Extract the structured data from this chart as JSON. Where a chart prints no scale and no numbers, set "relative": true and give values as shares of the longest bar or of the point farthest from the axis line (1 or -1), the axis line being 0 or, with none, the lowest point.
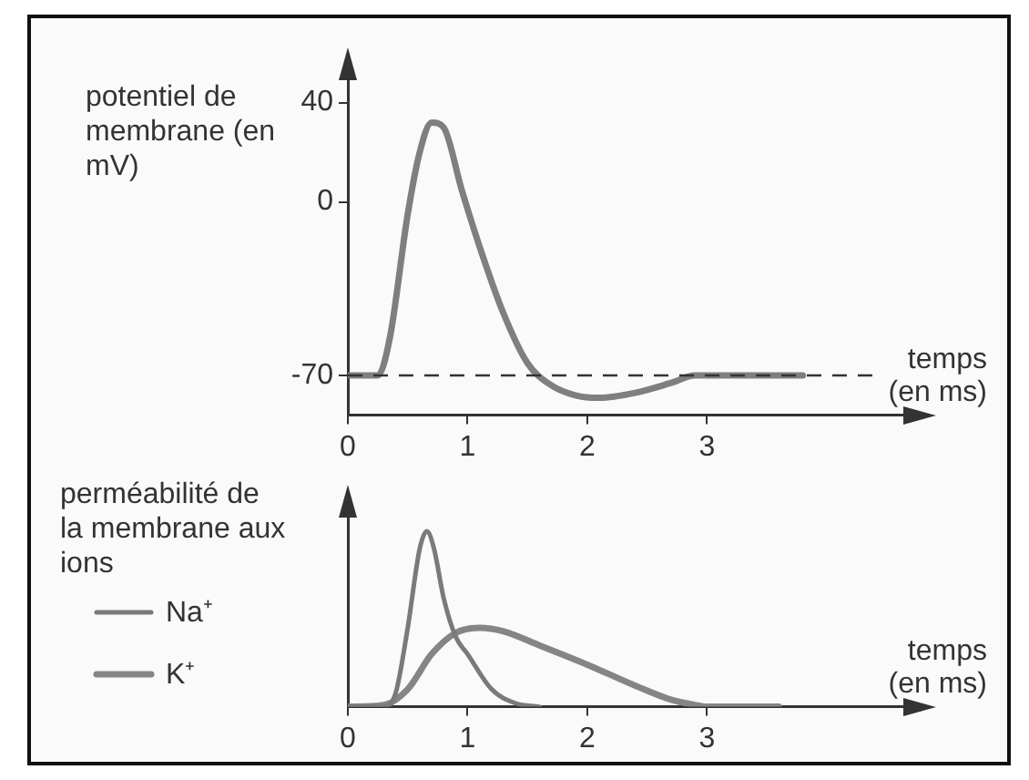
{
  "chart_data": [
    {
      "type": "line",
      "ylabel": "potentiel de membrane (en mV)",
      "xlabel": "temps (en ms)",
      "xlim": [
        0,
        4.7
      ],
      "xticks": [
        0,
        1,
        2,
        3
      ],
      "ylim": [
        -86,
        52
      ],
      "yticks": [
        -70,
        0,
        40
      ],
      "x": [
        0,
        0.25,
        0.35,
        0.5,
        0.6,
        0.7,
        0.8,
        0.95,
        1.1,
        1.3,
        1.5,
        1.7,
        1.9,
        2.1,
        2.4,
        2.7,
        2.9,
        3.8
      ],
      "series": [
        {
          "color": "#7f7f7f",
          "values": [
            -70,
            -70,
            -55,
            -5,
            20,
            32,
            30,
            5,
            -18,
            -45,
            -65,
            -74,
            -78,
            -79,
            -77,
            -73,
            -70,
            -70
          ]
        }
      ],
      "ref_lines": [
        {
          "axis": "y",
          "value": -70,
          "line_style": "dashed",
          "color": "#333333"
        }
      ],
      "grid": false,
      "marker": "none"
    },
    {
      "type": "line",
      "ylabel": "perméabilité de la membrane aux ions",
      "xlabel": "temps (en ms)",
      "xlim": [
        0,
        4.7
      ],
      "xticks": [
        0,
        1,
        2,
        3
      ],
      "relative": true,
      "tick_labels": "x",
      "legend": "left",
      "grid": false,
      "marker": "none",
      "series": [
        {
          "name": "Na⁺",
          "color": "#7a7a7a",
          "x": [
            0,
            0.3,
            0.4,
            0.5,
            0.6,
            0.66,
            0.72,
            0.8,
            0.9,
            1.0,
            1.2,
            1.4,
            1.6
          ],
          "values": [
            0,
            0,
            0.08,
            0.45,
            0.9,
            1,
            0.9,
            0.62,
            0.4,
            0.3,
            0.1,
            0.02,
            0
          ]
        },
        {
          "name": "K⁺",
          "color": "#858585",
          "x": [
            0,
            0.3,
            0.5,
            0.7,
            0.9,
            1.1,
            1.3,
            1.6,
            2.0,
            2.4,
            2.7,
            2.9,
            3.0,
            3.6
          ],
          "values": [
            0,
            0.01,
            0.1,
            0.3,
            0.42,
            0.45,
            0.43,
            0.35,
            0.24,
            0.12,
            0.04,
            0.01,
            0,
            0
          ]
        }
      ]
    }
  ]
}
